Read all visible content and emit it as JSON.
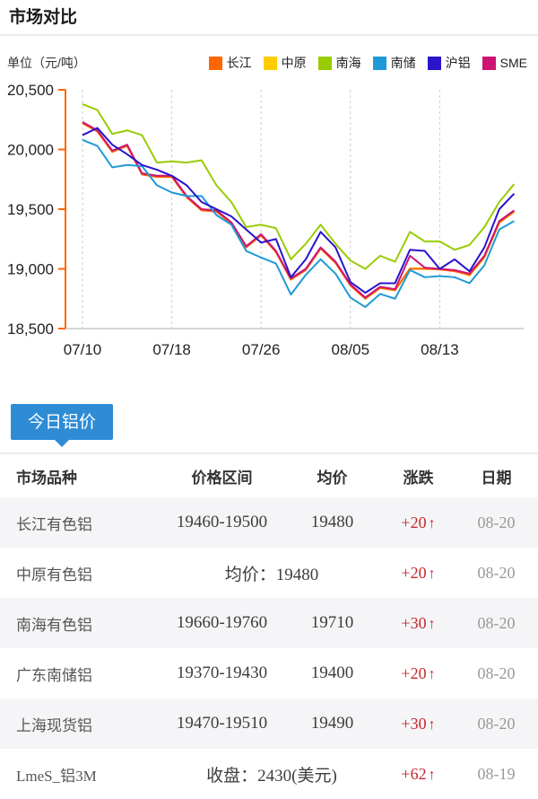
{
  "page": {
    "title": "市场对比"
  },
  "chart": {
    "unit_label": "单位（元/吨）",
    "axis_color": "#ff6600",
    "grid_color": "#cccccc",
    "baseline_color": "#c8c8c8",
    "label_color": "#222222"
  },
  "chart_data": {
    "type": "line",
    "title": "市场对比",
    "ylabel": "单位（元/吨）",
    "ylim": [
      18500,
      20500
    ],
    "y_ticks": [
      20500,
      20000,
      19500,
      19000,
      18500
    ],
    "y_tick_labels": [
      "20,500",
      "20,000",
      "19,500",
      "19,000",
      "18,500"
    ],
    "x_tick_labels": [
      "07/10",
      "07/18",
      "07/26",
      "08/05",
      "08/13"
    ],
    "x_tick_indices": [
      0,
      6,
      12,
      18,
      24
    ],
    "n_points": 30,
    "grid": "vertical-dashed",
    "legend_position": "top",
    "series": [
      {
        "name": "长江",
        "color": "#ff6600",
        "draw_order": 2,
        "values": [
          20220,
          20150,
          19980,
          20030,
          19790,
          19770,
          19770,
          19600,
          19490,
          19480,
          19380,
          19180,
          19280,
          19140,
          18910,
          18990,
          19170,
          19050,
          18860,
          18750,
          18840,
          18820,
          19000,
          19000,
          18995,
          18980,
          18950,
          19100,
          19390,
          19480
        ]
      },
      {
        "name": "中原",
        "color": "#ffcc00",
        "draw_order": 1,
        "values": [
          20225,
          20155,
          19985,
          20035,
          19795,
          19775,
          19775,
          19605,
          19495,
          19485,
          19385,
          19185,
          19285,
          19145,
          18915,
          18995,
          19175,
          19055,
          18865,
          18755,
          18845,
          18825,
          19005,
          19005,
          19000,
          18985,
          18945,
          19095,
          19385,
          19480
        ]
      },
      {
        "name": "南海",
        "color": "#99cc00",
        "draw_order": 6,
        "values": [
          20380,
          20330,
          20130,
          20160,
          20120,
          19890,
          19900,
          19890,
          19910,
          19700,
          19560,
          19350,
          19370,
          19340,
          19080,
          19210,
          19370,
          19210,
          19070,
          19000,
          19110,
          19060,
          19310,
          19230,
          19230,
          19160,
          19200,
          19350,
          19560,
          19710
        ]
      },
      {
        "name": "南储",
        "color": "#1f9ad7",
        "draw_order": 4,
        "values": [
          20080,
          20030,
          19850,
          19870,
          19860,
          19700,
          19640,
          19610,
          19610,
          19450,
          19370,
          19150,
          19095,
          19045,
          18785,
          18950,
          19080,
          18960,
          18760,
          18680,
          18790,
          18750,
          18990,
          18930,
          18940,
          18930,
          18880,
          19030,
          19330,
          19400
        ]
      },
      {
        "name": "沪铝",
        "color": "#2a14cc",
        "draw_order": 5,
        "values": [
          20120,
          20180,
          20040,
          19960,
          19870,
          19830,
          19780,
          19700,
          19560,
          19500,
          19440,
          19330,
          19220,
          19250,
          18930,
          19080,
          19310,
          19180,
          18890,
          18800,
          18880,
          18880,
          19160,
          19150,
          19000,
          19080,
          18980,
          19180,
          19500,
          19630
        ]
      },
      {
        "name": "SME",
        "color": "#cc1472",
        "draw_order": 3,
        "values": [
          20230,
          20160,
          19990,
          20040,
          19800,
          19780,
          19780,
          19610,
          19500,
          19490,
          19390,
          19190,
          19290,
          19150,
          18920,
          19000,
          19180,
          19060,
          18870,
          18760,
          18850,
          18830,
          19110,
          19010,
          19000,
          18990,
          18960,
          19110,
          19400,
          19490
        ]
      }
    ]
  },
  "today_button": {
    "label": "今日铝价",
    "color": "#2e8cd5"
  },
  "table": {
    "headers": [
      "市场品种",
      "价格区间",
      "均价",
      "涨跌",
      "日期"
    ],
    "up_arrow": "↑",
    "change_color": "#c5282d",
    "date_color": "#999999",
    "rows": [
      {
        "name": "长江有色铝",
        "range": "19460-19500",
        "avg": "19480",
        "change": "+20",
        "date": "08-20"
      },
      {
        "name": "中原有色铝",
        "merged": "均价：19480",
        "change": "+20",
        "date": "08-20"
      },
      {
        "name": "南海有色铝",
        "range": "19660-19760",
        "avg": "19710",
        "change": "+30",
        "date": "08-20"
      },
      {
        "name": "广东南储铝",
        "range": "19370-19430",
        "avg": "19400",
        "change": "+20",
        "date": "08-20"
      },
      {
        "name": "上海现货铝",
        "range": "19470-19510",
        "avg": "19490",
        "change": "+30",
        "date": "08-20"
      },
      {
        "name": "LmeS_铝3M",
        "merged": "收盘：2430(美元)",
        "change": "+62",
        "date": "08-19"
      }
    ]
  }
}
